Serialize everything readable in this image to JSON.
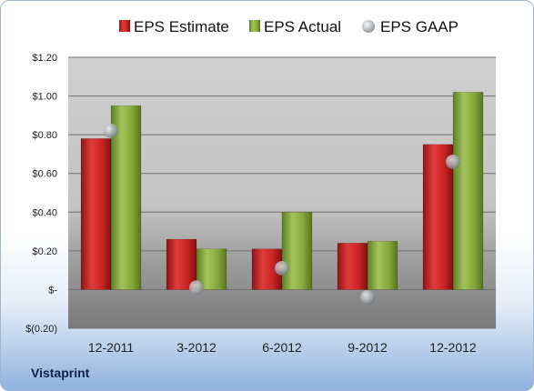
{
  "company": "Vistaprint",
  "chart_data": {
    "type": "bar",
    "categories": [
      "12-2011",
      "3-2012",
      "6-2012",
      "9-2012",
      "12-2012"
    ],
    "series": [
      {
        "name": "EPS Estimate",
        "kind": "bar",
        "color": "#cc2a2a",
        "values": [
          0.78,
          0.26,
          0.21,
          0.24,
          0.75
        ]
      },
      {
        "name": "EPS Actual",
        "kind": "bar",
        "color": "#8aad3e",
        "values": [
          0.95,
          0.21,
          0.4,
          0.25,
          1.02
        ]
      },
      {
        "name": "EPS GAAP",
        "kind": "marker",
        "color": "#9aa3ad",
        "values": [
          0.82,
          0.01,
          0.11,
          -0.04,
          0.66
        ]
      }
    ],
    "ylim": [
      -0.2,
      1.2
    ],
    "yticks": [
      -0.2,
      0,
      0.2,
      0.4,
      0.6,
      0.8,
      1.0,
      1.2
    ],
    "ytick_labels": [
      "$(0.20)",
      "$-",
      "$0.20",
      "$0.40",
      "$0.60",
      "$0.80",
      "$1.00",
      "$1.20"
    ],
    "grid": true,
    "legend": "top"
  }
}
